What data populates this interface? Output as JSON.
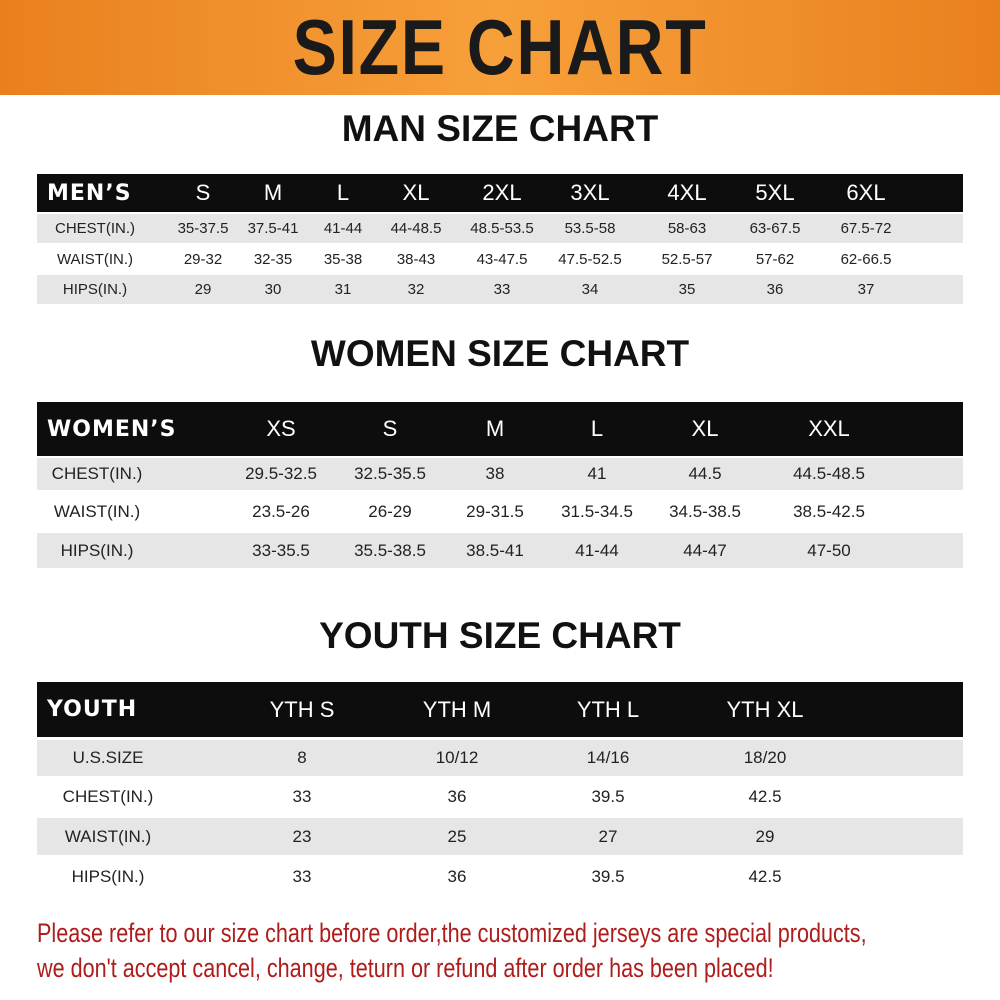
{
  "banner_title": "SIZE CHART",
  "colors": {
    "banner": "#f39a33",
    "header_row": "#0d0d0d",
    "note": "#b01c1c"
  },
  "men": {
    "title": "MAN SIZE CHART",
    "header": [
      "MEN’S",
      "S",
      "M",
      "L",
      "XL",
      "2XL",
      "3XL",
      "4XL",
      "5XL",
      "6XL"
    ],
    "rows": [
      [
        "CHEST(IN.)",
        "35-37.5",
        "37.5-41",
        "41-44",
        "44-48.5",
        "48.5-53.5",
        "53.5-58",
        "58-63",
        "63-67.5",
        "67.5-72"
      ],
      [
        "WAIST(IN.)",
        "29-32",
        "32-35",
        "35-38",
        "38-43",
        "43-47.5",
        "47.5-52.5",
        "52.5-57",
        "57-62",
        "62-66.5"
      ],
      [
        "HIPS(IN.)",
        "29",
        "30",
        "31",
        "32",
        "33",
        "34",
        "35",
        "36",
        "37"
      ]
    ]
  },
  "women": {
    "title": "WOMEN SIZE CHART",
    "header": [
      "WOMEN’S",
      "XS",
      "S",
      "M",
      "L",
      "XL",
      "XXL"
    ],
    "rows": [
      [
        "CHEST(IN.)",
        "29.5-32.5",
        "32.5-35.5",
        "38",
        "41",
        "44.5",
        "44.5-48.5"
      ],
      [
        "WAIST(IN.)",
        "23.5-26",
        "26-29",
        "29-31.5",
        "31.5-34.5",
        "34.5-38.5",
        "38.5-42.5"
      ],
      [
        "HIPS(IN.)",
        "33-35.5",
        "35.5-38.5",
        "38.5-41",
        "41-44",
        "44-47",
        "47-50"
      ]
    ]
  },
  "youth": {
    "title": "YOUTH SIZE CHART",
    "header": [
      "YOUTH",
      "YTH S",
      "YTH M",
      "YTH L",
      "YTH XL"
    ],
    "rows": [
      [
        "U.S.SIZE",
        "8",
        "10/12",
        "14/16",
        "18/20"
      ],
      [
        "CHEST(IN.)",
        "33",
        "36",
        "39.5",
        "42.5"
      ],
      [
        "WAIST(IN.)",
        "23",
        "25",
        "27",
        "29"
      ],
      [
        "HIPS(IN.)",
        "33",
        "36",
        "39.5",
        "42.5"
      ]
    ]
  },
  "note": {
    "line1": "Please refer to our size chart before order,the customized jerseys are special products,",
    "line2": "we don't accept cancel, change, teturn or refund after order has been placed!"
  }
}
